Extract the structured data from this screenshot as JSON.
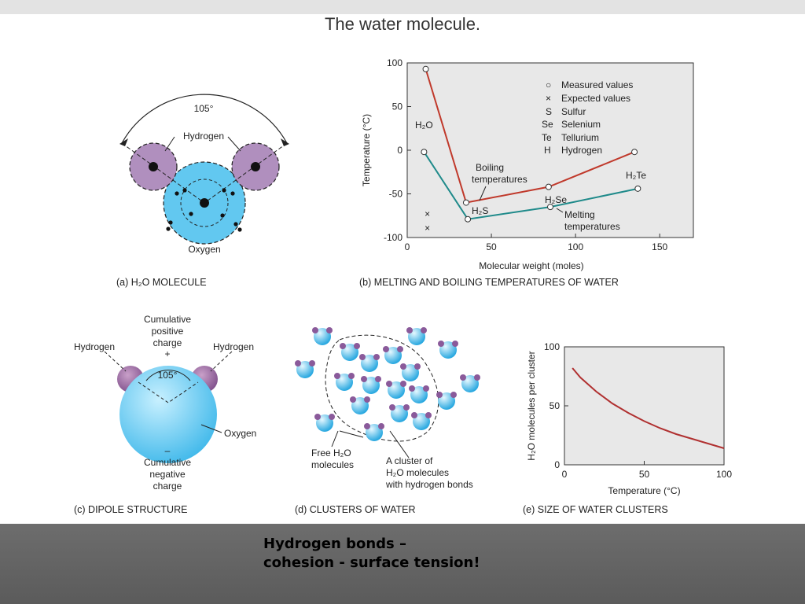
{
  "slide_title": "The water molecule.",
  "caption": {
    "line1": "Hydrogen bonds –",
    "line2": "cohesion - surface tension!"
  },
  "panel_a": {
    "angle": "105°",
    "hydrogen": "Hydrogen",
    "oxygen": "Oxygen",
    "caption": "(a) H₂O MOLECULE"
  },
  "panel_b": {
    "caption": "(b) MELTING AND BOILING TEMPERATURES OF WATER",
    "legend": [
      {
        "symbol": "○",
        "text": "Measured values"
      },
      {
        "symbol": "×",
        "text": "Expected values"
      },
      {
        "symbol": "S",
        "text": "Sulfur"
      },
      {
        "symbol": "Se",
        "text": "Selenium"
      },
      {
        "symbol": "Te",
        "text": "Tellurium"
      },
      {
        "symbol": "H",
        "text": "Hydrogen"
      }
    ],
    "annotations": {
      "h2o": "H₂O",
      "h2s": "H₂S",
      "h2se": "H₂Se",
      "h2te": "H₂Te",
      "boiling_1": "Boiling",
      "boiling_2": "temperatures",
      "melting_1": "Melting",
      "melting_2": "temperatures"
    }
  },
  "panel_c": {
    "pos_1": "Cumulative",
    "pos_2": "positive",
    "pos_3": "charge",
    "plus": "+",
    "hydrogen": "Hydrogen",
    "angle": "105°",
    "oxygen": "Oxygen",
    "minus": "–",
    "neg_1": "Cumulative",
    "neg_2": "negative",
    "neg_3": "charge",
    "caption": "(c) DIPOLE STRUCTURE"
  },
  "panel_d": {
    "free_1": "Free H₂O",
    "free_2": "molecules",
    "cluster_1": "A cluster of",
    "cluster_2": "H₂O molecules",
    "cluster_3": "with hydrogen bonds",
    "caption": "(d) CLUSTERS OF WATER"
  },
  "panel_e": {
    "caption": "(e) SIZE OF WATER CLUSTERS"
  },
  "chart_data": [
    {
      "type": "line",
      "title": "",
      "xlabel": "Molecular weight (moles)",
      "ylabel": "Temperature (°C)",
      "xlim": [
        0,
        170
      ],
      "ylim": [
        -100,
        100
      ],
      "xticks": [
        0,
        50,
        100,
        150
      ],
      "yticks": [
        100,
        50,
        0,
        -50,
        -100
      ],
      "series": [
        {
          "name": "Boiling temperatures",
          "color": "#c0392b",
          "x": [
            11,
            35,
            84,
            135
          ],
          "y": [
            93,
            -60,
            -42,
            -2
          ]
        },
        {
          "name": "Melting temperatures",
          "color": "#1f8a8a",
          "x": [
            10,
            36,
            85,
            137
          ],
          "y": [
            -2,
            -79,
            -65,
            -44
          ]
        }
      ],
      "expected_points": {
        "x": [
          12,
          12
        ],
        "y": [
          -73,
          -89
        ]
      }
    },
    {
      "type": "line",
      "title": "",
      "xlabel": "Temperature (°C)",
      "ylabel": "H₂O molecules per cluster",
      "xlim": [
        0,
        100
      ],
      "ylim": [
        0,
        100
      ],
      "xticks": [
        0,
        50,
        100
      ],
      "yticks": [
        100,
        50,
        0
      ],
      "series": [
        {
          "color": "#b03030",
          "x": [
            5,
            10,
            20,
            30,
            40,
            50,
            60,
            70,
            80,
            90,
            100
          ],
          "y": [
            82,
            74,
            62,
            52,
            44,
            37,
            31,
            26,
            22,
            18,
            14
          ]
        }
      ]
    }
  ]
}
